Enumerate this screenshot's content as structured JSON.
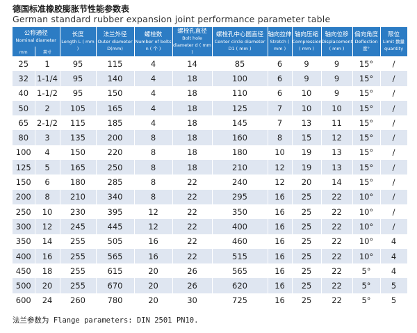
{
  "header": {
    "title": "德国标准橡胶膨胀节性能参数表",
    "subtitle": "German standard rubber expansion joint performance parameter table"
  },
  "table": {
    "columns": [
      {
        "zh": "公称通径",
        "en": "Nominal diameter"
      },
      {
        "zh": "长度",
        "en": "Length L ( mm )"
      },
      {
        "zh": "法兰外径",
        "en": "Outer diameter D(mm)"
      },
      {
        "zh": "螺栓数",
        "en": "Number of bolts n ( 个 )"
      },
      {
        "zh": "螺栓孔直径",
        "en": "Bolt hole diameter d ( mm )"
      },
      {
        "zh": "螺栓孔中心圆直径",
        "en": "Center circle diameter D1 ( mm )"
      },
      {
        "zh": "轴向拉伸",
        "en": "Stretch ( mm )"
      },
      {
        "zh": "轴向压缩",
        "en": "Compression ( mm )"
      },
      {
        "zh": "轴向位移",
        "en": "Displacement ( mm )"
      },
      {
        "zh": "偏向角度",
        "en": "Deflection 度°"
      },
      {
        "zh": "限位",
        "en": "Limit 数量 quantity"
      }
    ],
    "nominal_units": [
      "mm",
      "英寸"
    ],
    "rows": [
      [
        "25",
        "1",
        "95",
        "115",
        "4",
        "14",
        "85",
        "6",
        "9",
        "9",
        "15°",
        "/"
      ],
      [
        "32",
        "1-1/4",
        "95",
        "140",
        "4",
        "18",
        "100",
        "6",
        "9",
        "9",
        "15°",
        "/"
      ],
      [
        "40",
        "1-1/2",
        "95",
        "150",
        "4",
        "18",
        "110",
        "6",
        "10",
        "9",
        "15°",
        "/"
      ],
      [
        "50",
        "2",
        "105",
        "165",
        "4",
        "18",
        "125",
        "7",
        "10",
        "10",
        "15°",
        "/"
      ],
      [
        "65",
        "2-1/2",
        "115",
        "185",
        "4",
        "18",
        "145",
        "7",
        "13",
        "11",
        "15°",
        "/"
      ],
      [
        "80",
        "3",
        "135",
        "200",
        "8",
        "18",
        "160",
        "8",
        "15",
        "12",
        "15°",
        "/"
      ],
      [
        "100",
        "4",
        "150",
        "220",
        "8",
        "18",
        "180",
        "10",
        "19",
        "13",
        "15°",
        "/"
      ],
      [
        "125",
        "5",
        "165",
        "250",
        "8",
        "18",
        "210",
        "12",
        "19",
        "13",
        "15°",
        "/"
      ],
      [
        "150",
        "6",
        "180",
        "285",
        "8",
        "22",
        "240",
        "12",
        "20",
        "14",
        "15°",
        "/"
      ],
      [
        "200",
        "8",
        "210",
        "340",
        "8",
        "22",
        "295",
        "16",
        "25",
        "22",
        "10°",
        "/"
      ],
      [
        "250",
        "10",
        "230",
        "395",
        "12",
        "22",
        "350",
        "16",
        "25",
        "22",
        "10°",
        "/"
      ],
      [
        "300",
        "12",
        "245",
        "445",
        "12",
        "22",
        "400",
        "16",
        "25",
        "22",
        "10°",
        "/"
      ],
      [
        "350",
        "14",
        "255",
        "505",
        "16",
        "22",
        "460",
        "16",
        "25",
        "22",
        "10°",
        "4"
      ],
      [
        "400",
        "16",
        "255",
        "565",
        "16",
        "22",
        "515",
        "16",
        "25",
        "22",
        "10°",
        "4"
      ],
      [
        "450",
        "18",
        "255",
        "615",
        "20",
        "26",
        "565",
        "16",
        "25",
        "22",
        "5°",
        "4"
      ],
      [
        "500",
        "20",
        "255",
        "670",
        "20",
        "26",
        "620",
        "16",
        "25",
        "22",
        "5°",
        "5"
      ],
      [
        "600",
        "24",
        "260",
        "780",
        "20",
        "30",
        "725",
        "16",
        "25",
        "22",
        "5°",
        "5"
      ]
    ]
  },
  "footer": {
    "note": "法兰参数为 Flange parameters: DIN 2501 PN10."
  }
}
